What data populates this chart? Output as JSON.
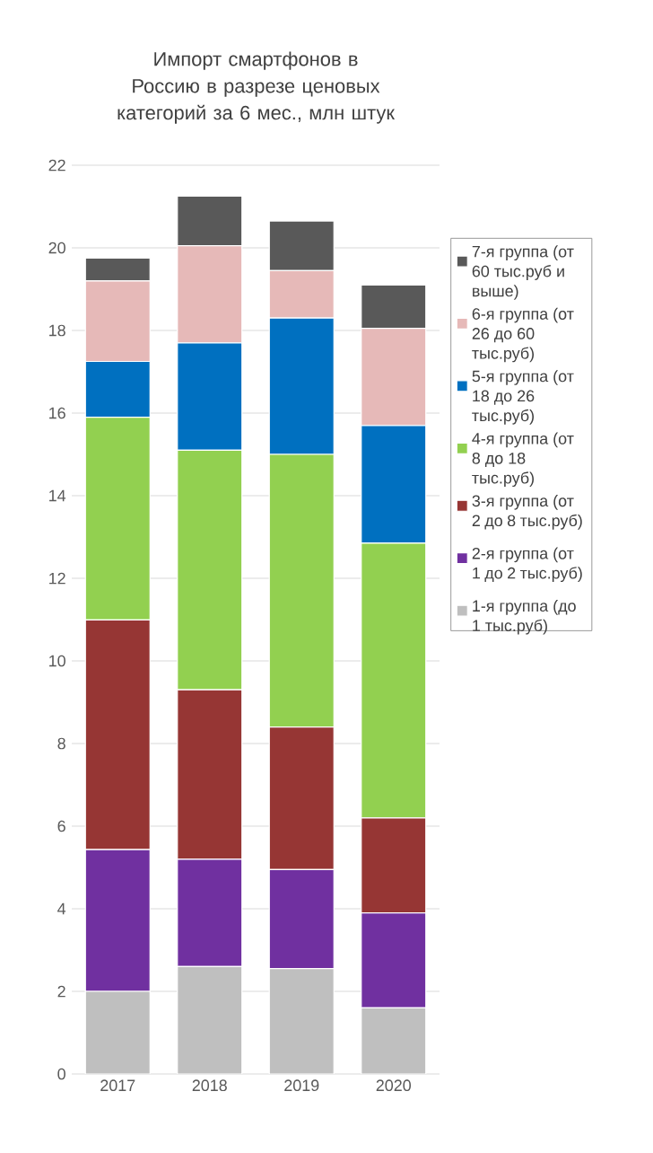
{
  "chart_data": {
    "type": "bar",
    "stacked": true,
    "title": "Импорт смартфонов в Россию в разрезе ценовых категорий за 6 мес., млн штук",
    "categories": [
      "2017",
      "2018",
      "2019",
      "2020"
    ],
    "series": [
      {
        "name": "1-я группа (до 1 тыс.руб)",
        "color": "#bfbfbf",
        "values": [
          2.0,
          2.6,
          2.55,
          1.6
        ]
      },
      {
        "name": "2-я группа (от 1 до 2 тыс.руб)",
        "color": "#7030a0",
        "values": [
          3.43,
          2.6,
          2.4,
          2.3
        ]
      },
      {
        "name": "3-я группа (от 2 до 8 тыс.руб)",
        "color": "#963634",
        "values": [
          5.56,
          4.1,
          3.45,
          2.3
        ]
      },
      {
        "name": "4-я группа (от 8 до 18 тыс.руб)",
        "color": "#92d050",
        "values": [
          4.91,
          5.8,
          6.6,
          6.65
        ]
      },
      {
        "name": "5-я группа (от 18 до 26 тыс.руб)",
        "color": "#0070c0",
        "values": [
          1.35,
          2.6,
          3.3,
          2.85
        ]
      },
      {
        "name": "6-я группа (от 26 до 60 тыс.руб)",
        "color": "#e6b9b8",
        "values": [
          1.95,
          2.35,
          1.15,
          2.35
        ]
      },
      {
        "name": "7-я группа (от 60 тыс.руб и выше)",
        "color": "#595959",
        "values": [
          0.55,
          1.2,
          1.2,
          1.05
        ]
      }
    ],
    "ylim": [
      0,
      22
    ],
    "yticks": [
      0,
      2,
      4,
      6,
      8,
      10,
      12,
      14,
      16,
      18,
      20,
      22
    ],
    "grid": "y",
    "legend": "right"
  }
}
